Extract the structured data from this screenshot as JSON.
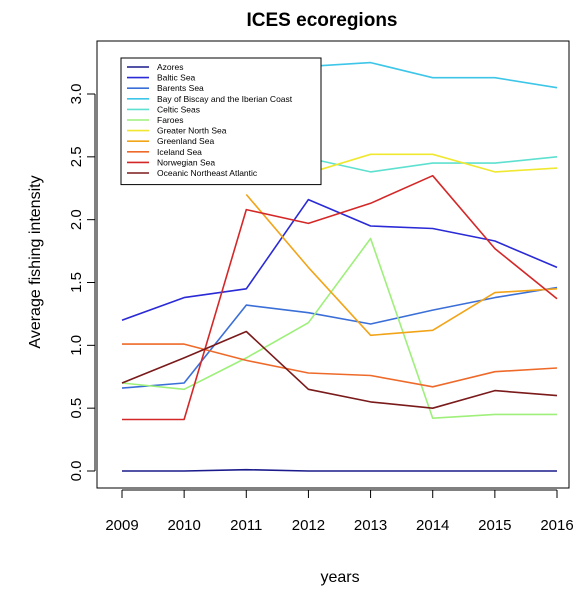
{
  "chart_data": {
    "type": "line",
    "title": "ICES ecoregions",
    "xlabel": "years",
    "ylabel": "Average fishing intensity",
    "x": [
      2009,
      2010,
      2011,
      2012,
      2013,
      2014,
      2015,
      2016
    ],
    "xlim": [
      2009,
      2016
    ],
    "ylim": [
      0.0,
      3.3
    ],
    "yticks": [
      0.0,
      0.5,
      1.0,
      1.5,
      2.0,
      2.5,
      3.0
    ],
    "ytick_labels": [
      "0.0",
      "0.5",
      "1.0",
      "1.5",
      "2.0",
      "2.5",
      "3.0"
    ],
    "grid": false,
    "legend_position": "top-left",
    "series": [
      {
        "name": "Azores",
        "color": "#1a1a8c",
        "values": [
          0.0,
          0.0,
          0.01,
          0.0,
          0.0,
          0.0,
          0.0,
          0.0
        ]
      },
      {
        "name": "Baltic Sea",
        "color": "#2a2ad6",
        "values": [
          1.2,
          1.38,
          1.45,
          2.16,
          1.95,
          1.93,
          1.83,
          1.62
        ]
      },
      {
        "name": "Barents Sea",
        "color": "#3b6fd8",
        "values": [
          0.66,
          0.7,
          1.32,
          1.26,
          1.17,
          1.28,
          1.38,
          1.46
        ]
      },
      {
        "name": "Bay of Biscay and the Iberian Coast",
        "color": "#3ec6e8",
        "values": [
          null,
          null,
          null,
          3.22,
          3.25,
          3.13,
          3.13,
          3.05
        ]
      },
      {
        "name": "Celtic Seas",
        "color": "#5ee0d0",
        "values": [
          null,
          null,
          null,
          2.49,
          2.38,
          2.45,
          2.45,
          2.5
        ]
      },
      {
        "name": "Faroes",
        "color": "#9ef07a",
        "values": [
          0.7,
          0.65,
          0.9,
          1.18,
          1.85,
          0.42,
          0.45,
          0.45
        ]
      },
      {
        "name": "Greater North Sea",
        "color": "#f0e830",
        "values": [
          null,
          null,
          null,
          2.37,
          2.52,
          2.52,
          2.38,
          2.41
        ]
      },
      {
        "name": "Greenland Sea",
        "color": "#f2a418",
        "values": [
          null,
          null,
          2.2,
          1.62,
          1.08,
          1.12,
          1.42,
          1.45
        ]
      },
      {
        "name": "Iceland Sea",
        "color": "#ee6a2a",
        "values": [
          1.01,
          1.01,
          0.88,
          0.78,
          0.76,
          0.67,
          0.79,
          0.82
        ]
      },
      {
        "name": "Norwegian Sea",
        "color": "#d42828",
        "values": [
          0.41,
          0.41,
          2.08,
          1.97,
          2.13,
          2.35,
          1.77,
          1.37
        ]
      },
      {
        "name": "Oceanic Northeast Atlantic",
        "color": "#7a1a1a",
        "values": [
          0.7,
          0.9,
          1.11,
          0.65,
          0.55,
          0.5,
          0.64,
          0.6
        ]
      }
    ]
  }
}
